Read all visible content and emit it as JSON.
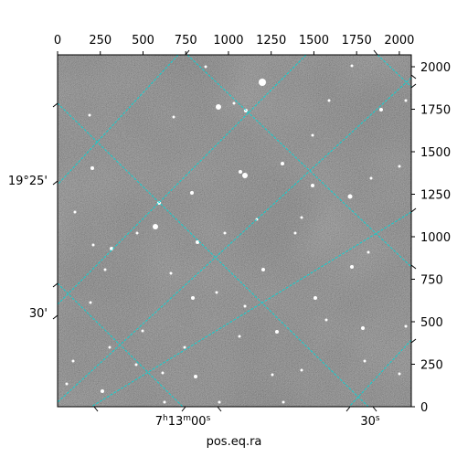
{
  "plot": {
    "xlabel": "pos.eq.ra",
    "pixel_axes": {
      "x_ticks": [
        "0",
        "250",
        "500",
        "750",
        "1000",
        "1250",
        "1500",
        "1750",
        "2000"
      ],
      "y_ticks": [
        "0",
        "250",
        "500",
        "750",
        "1000",
        "1250",
        "1500",
        "1750",
        "2000"
      ]
    },
    "ra_labels": [
      {
        "h": "7",
        "m": "13",
        "s": "00",
        "text_h": "h",
        "text_m": "m",
        "text_s": "s"
      },
      {
        "s": "30",
        "text_s": "s"
      }
    ],
    "dec_labels": [
      "19°25'",
      "30'"
    ],
    "colors": {
      "grid": "#00d8d8",
      "background": "#6a6a6a",
      "stars": "#ffffff"
    }
  }
}
